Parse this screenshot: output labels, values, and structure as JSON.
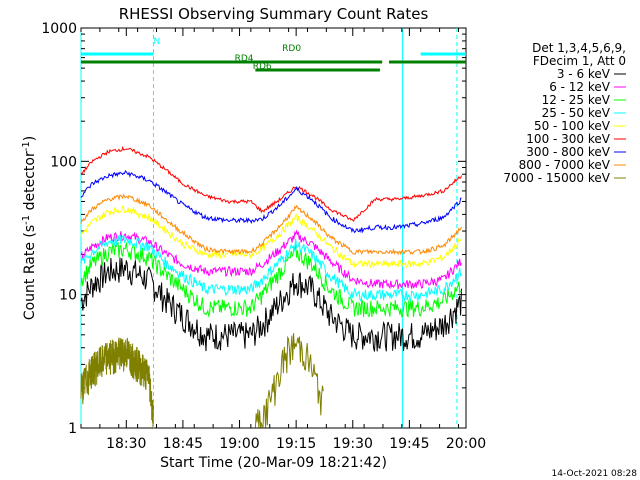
{
  "chart_data": {
    "type": "line",
    "title": "RHESSI Observing Summary Count Rates",
    "xlabel": "Start Time (20-Mar-09 18:21:42)",
    "ylabel_prefix": "Count Rate (s",
    "ylabel_sup": "-1",
    "ylabel_mid": " detector",
    "ylabel_tail": ")",
    "footer": "14-Oct-2021 08:28",
    "yscale": "log",
    "ylim": [
      1,
      1000
    ],
    "xlim_minutes": [
      18.3,
      20.0
    ],
    "x_ticks": [
      {
        "label": "18:30",
        "t": 18.5
      },
      {
        "label": "18:45",
        "t": 18.75
      },
      {
        "label": "19:00",
        "t": 19.0
      },
      {
        "label": "19:15",
        "t": 19.25
      },
      {
        "label": "19:30",
        "t": 19.5
      },
      {
        "label": "19:45",
        "t": 19.75
      },
      {
        "label": "20:00",
        "t": 20.0
      }
    ],
    "y_ticks": [
      {
        "label": "1",
        "v": 1
      },
      {
        "label": "10",
        "v": 10
      },
      {
        "label": "100",
        "v": 100
      },
      {
        "label": "1000",
        "v": 1000
      }
    ],
    "legend_header": [
      "Det 1,3,4,5,6,9,",
      "FDecim 1, Att 0"
    ],
    "series": [
      {
        "name": "3 - 6 keV",
        "color": "#000000",
        "x": [
          18.3,
          18.35,
          18.42,
          18.5,
          18.6,
          18.68,
          18.75,
          18.85,
          18.95,
          19.05,
          19.1,
          19.18,
          19.25,
          19.32,
          19.4,
          19.5,
          19.6,
          19.7,
          19.8,
          19.9,
          19.98
        ],
        "y": [
          9,
          12,
          15,
          16,
          13,
          9,
          7,
          5,
          5,
          5,
          6,
          9,
          13,
          11,
          7,
          5,
          5,
          5,
          5,
          6,
          9
        ]
      },
      {
        "name": "6 - 12 keV",
        "color": "#ff00ff",
        "x": [
          18.3,
          18.35,
          18.42,
          18.5,
          18.6,
          18.68,
          18.75,
          18.85,
          18.95,
          19.05,
          19.1,
          19.18,
          19.25,
          19.32,
          19.4,
          19.5,
          19.6,
          19.7,
          19.8,
          19.9,
          19.98
        ],
        "y": [
          19,
          23,
          27,
          28,
          25,
          20,
          17,
          15,
          15,
          15,
          17,
          22,
          28,
          24,
          18,
          13,
          12,
          12,
          12,
          13,
          18
        ]
      },
      {
        "name": "12 - 25 keV",
        "color": "#00ff00",
        "x": [
          18.3,
          18.35,
          18.42,
          18.5,
          18.6,
          18.68,
          18.75,
          18.85,
          18.95,
          19.05,
          19.1,
          19.18,
          19.25,
          19.32,
          19.4,
          19.5,
          19.6,
          19.7,
          19.8,
          19.9,
          19.98
        ],
        "y": [
          13,
          17,
          21,
          22,
          19,
          14,
          11,
          8,
          8,
          8,
          10,
          15,
          21,
          17,
          11,
          8,
          8,
          8,
          8,
          9,
          12
        ]
      },
      {
        "name": "25 - 50 keV",
        "color": "#00ffff",
        "x": [
          18.3,
          18.35,
          18.42,
          18.5,
          18.6,
          18.68,
          18.75,
          18.85,
          18.95,
          19.05,
          19.1,
          19.18,
          19.25,
          19.32,
          19.4,
          19.5,
          19.6,
          19.7,
          19.8,
          19.9,
          19.98
        ],
        "y": [
          17,
          21,
          25,
          26,
          23,
          17,
          14,
          11,
          11,
          11,
          13,
          18,
          24,
          20,
          14,
          10,
          10,
          10,
          10,
          11,
          15
        ]
      },
      {
        "name": "50 - 100 keV",
        "color": "#ffff00",
        "x": [
          18.3,
          18.35,
          18.42,
          18.5,
          18.6,
          18.68,
          18.75,
          18.85,
          18.95,
          19.05,
          19.1,
          19.18,
          19.25,
          19.32,
          19.4,
          19.5,
          19.6,
          19.7,
          19.8,
          19.9,
          19.98
        ],
        "y": [
          28,
          35,
          42,
          44,
          38,
          30,
          24,
          20,
          20,
          20,
          22,
          29,
          38,
          31,
          23,
          17,
          17,
          17,
          17,
          19,
          26
        ]
      },
      {
        "name": "100 - 300 keV",
        "color": "#ff0000",
        "x": [
          18.3,
          18.35,
          18.42,
          18.5,
          18.6,
          18.68,
          18.75,
          18.85,
          18.95,
          19.05,
          19.1,
          19.18,
          19.25,
          19.32,
          19.4,
          19.5,
          19.6,
          19.7,
          19.8,
          19.9,
          19.98
        ],
        "y": [
          80,
          100,
          118,
          125,
          108,
          85,
          68,
          55,
          50,
          50,
          42,
          52,
          65,
          56,
          44,
          36,
          52,
          52,
          55,
          60,
          78
        ]
      },
      {
        "name": "300 - 800 keV",
        "color": "#0000ff",
        "x": [
          18.3,
          18.35,
          18.42,
          18.5,
          18.6,
          18.68,
          18.75,
          18.85,
          18.95,
          19.05,
          19.1,
          19.18,
          19.25,
          19.32,
          19.4,
          19.5,
          19.6,
          19.7,
          19.8,
          19.9,
          19.98
        ],
        "y": [
          55,
          68,
          78,
          82,
          72,
          58,
          47,
          38,
          36,
          36,
          37,
          47,
          62,
          52,
          38,
          30,
          32,
          32,
          34,
          38,
          52
        ]
      },
      {
        "name": "800 - 7000 keV",
        "color": "#ff8800",
        "x": [
          18.3,
          18.35,
          18.42,
          18.5,
          18.6,
          18.68,
          18.75,
          18.85,
          18.95,
          19.05,
          19.1,
          19.18,
          19.25,
          19.32,
          19.4,
          19.5,
          19.6,
          19.7,
          19.8,
          19.9,
          19.98
        ],
        "y": [
          35,
          44,
          52,
          55,
          47,
          36,
          29,
          22,
          21,
          21,
          24,
          33,
          45,
          37,
          27,
          21,
          21,
          21,
          21,
          23,
          32
        ]
      },
      {
        "name": "7000 - 15000 keV",
        "color": "#808000",
        "x": [
          18.3,
          18.35,
          18.42,
          18.5,
          18.6,
          18.62
        ],
        "y": [
          2,
          2.8,
          3.5,
          3.8,
          2.5,
          1.2
        ]
      }
    ],
    "status_bars": [
      {
        "label": "N",
        "color": "#00ffff",
        "segments": [
          [
            18.3,
            18.62
          ],
          [
            19.8,
            20.0
          ]
        ],
        "level": 0.94
      },
      {
        "label": "RD0",
        "color": "#008000",
        "segments": [
          [
            18.3,
            19.63
          ],
          [
            19.66,
            20.0
          ]
        ],
        "level": 0.92
      },
      {
        "label": "RD4",
        "color": "#008000",
        "segments": [
          [
            19.07,
            19.62
          ]
        ],
        "level": 0.9
      },
      {
        "label": "RD6",
        "color": "#008000",
        "segments": [],
        "level": 0.88
      }
    ],
    "vertical_lines": [
      {
        "t": 18.3,
        "color": "#00ffff",
        "style": "solid"
      },
      {
        "t": 18.62,
        "color": "#00ffff",
        "style": "dashed"
      },
      {
        "t": 19.72,
        "color": "#00ffff",
        "style": "solid"
      },
      {
        "t": 19.96,
        "color": "#00ffff",
        "style": "dashed"
      }
    ]
  }
}
